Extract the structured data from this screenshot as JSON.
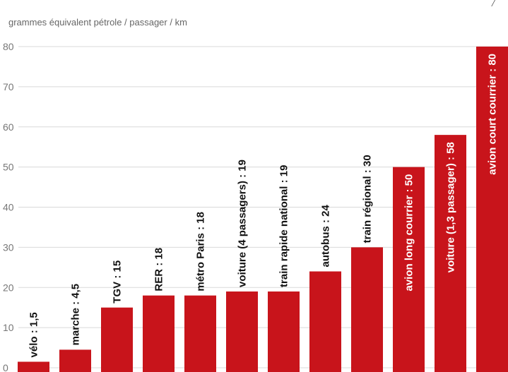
{
  "colors": {
    "bar": "#c8141b",
    "grid": "#d9d9d9",
    "label_dark": "#111111",
    "label_light": "#ffffff"
  },
  "corner_mark": "/",
  "chart_data": {
    "type": "bar",
    "ylabel": "grammes équivalent pétrole / passager / km",
    "ylim": [
      0,
      80
    ],
    "yticks": [
      0,
      10,
      20,
      30,
      40,
      50,
      60,
      70,
      80
    ],
    "grid": true,
    "categories": [
      "vélo",
      "marche",
      "TGV",
      "RER",
      "métro Paris",
      "voiture (4 passagers)",
      "train rapide national",
      "autobus",
      "train régional",
      "avion long courrier",
      "voiture (1,3 passager)",
      "avion court courrier"
    ],
    "values": [
      1.5,
      4.5,
      15,
      18,
      18,
      19,
      19,
      24,
      30,
      50,
      58,
      80
    ],
    "data_labels": [
      "vélo : 1,5",
      "marche : 4,5",
      "TGV : 15",
      "RER : 18",
      "métro Paris : 18",
      "voiture (4 passagers) : 19",
      "train rapide national : 19",
      "autobus : 24",
      "train régional : 30",
      "avion long courrier : 50",
      "voiture (1,3 passager) : 58",
      "avion court courrier : 80"
    ],
    "label_inside": [
      false,
      false,
      false,
      false,
      false,
      false,
      false,
      false,
      false,
      true,
      true,
      true
    ]
  }
}
